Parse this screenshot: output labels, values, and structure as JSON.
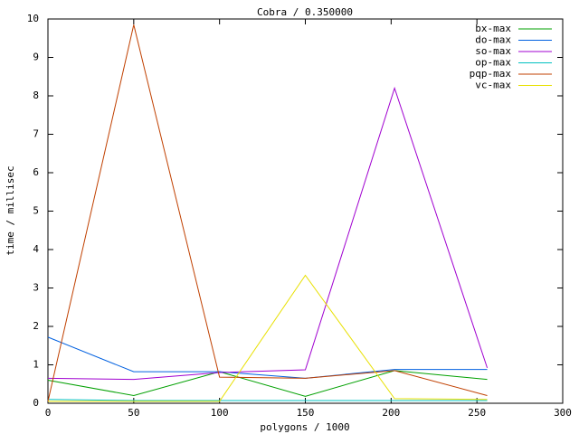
{
  "chart_data": {
    "type": "line",
    "title": "Cobra / 0.350000",
    "x_label": "polygons / 1000",
    "y_label": "time / millisec",
    "x": [
      0,
      50,
      100,
      150,
      202,
      256
    ],
    "series": [
      {
        "name": "bx-max",
        "color": "#00a000",
        "values": [
          0.6,
          0.2,
          0.82,
          0.18,
          0.85,
          0.62
        ]
      },
      {
        "name": "do-max",
        "color": "#0060e0",
        "values": [
          1.72,
          0.82,
          0.82,
          0.65,
          0.88,
          0.88
        ]
      },
      {
        "name": "so-max",
        "color": "#a000d0",
        "values": [
          0.65,
          0.62,
          0.8,
          0.87,
          8.2,
          0.92
        ]
      },
      {
        "name": "op-max",
        "color": "#00c0c0",
        "values": [
          0.1,
          0.07,
          0.07,
          0.07,
          0.07,
          0.07
        ]
      },
      {
        "name": "pqp-max",
        "color": "#c04000",
        "values": [
          0.05,
          9.85,
          0.68,
          0.65,
          0.85,
          0.2
        ]
      },
      {
        "name": "vc-max",
        "color": "#e8e000",
        "values": [
          0.05,
          0.05,
          0.05,
          3.33,
          0.12,
          0.1
        ]
      }
    ],
    "xlim": [
      0,
      300
    ],
    "xticks": [
      0,
      50,
      100,
      150,
      200,
      250,
      300
    ],
    "ylim": [
      0,
      10
    ],
    "yticks": [
      0,
      1,
      2,
      3,
      4,
      5,
      6,
      7,
      8,
      9,
      10
    ],
    "legend": "top-right"
  }
}
